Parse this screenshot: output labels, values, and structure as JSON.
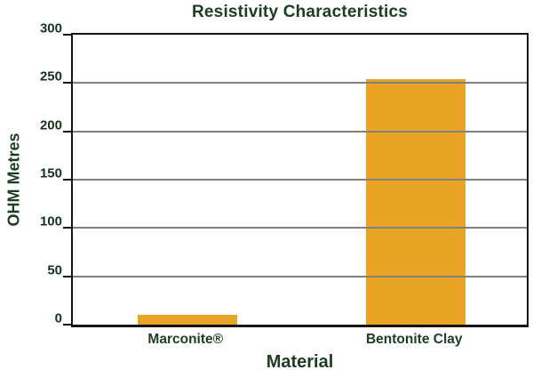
{
  "chart_data": {
    "type": "bar",
    "title": "Resistivity Characteristics",
    "xlabel": "Material",
    "ylabel": "OHM Metres",
    "categories": [
      "Marconite®",
      "Bentonite Clay"
    ],
    "values": [
      10,
      250
    ],
    "ylim": [
      0,
      300
    ],
    "yticks": [
      0,
      50,
      100,
      150,
      200,
      250,
      300
    ],
    "grid": "horizontal gridlines at every 50, drawn over bars",
    "legend": "none",
    "colors": {
      "bar_fill": "#E8A424",
      "text_dark_green": "#1C3D23",
      "tick_text": "#16311C",
      "gridline_gray": "#808080",
      "axis_black": "#141414",
      "background": "#FFFFFF"
    }
  }
}
